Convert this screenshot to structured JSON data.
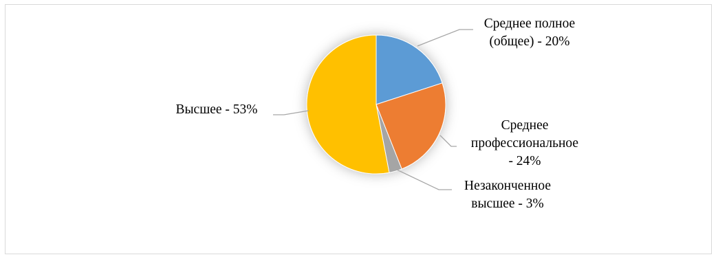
{
  "chart_data": {
    "type": "pie",
    "slices": [
      {
        "label_lines": [
          "Среднее полное",
          "(общее) - 20%"
        ],
        "value": 20,
        "color": "#5b9bd5",
        "key": "general-secondary"
      },
      {
        "label_lines": [
          "Среднее",
          "профессиональное",
          "- 24%"
        ],
        "value": 24,
        "color": "#ed7d31",
        "key": "vocational-secondary"
      },
      {
        "label_lines": [
          "Незаконченное",
          "высшее - 3%"
        ],
        "value": 3,
        "color": "#a5a5a5",
        "key": "incomplete-higher"
      },
      {
        "label_lines": [
          "Высшее - 53%"
        ],
        "value": 53,
        "color": "#ffc000",
        "key": "higher"
      }
    ],
    "start_angle_deg": 0,
    "direction": "clockwise",
    "legend": "none",
    "data_labels": "outside with leader lines"
  }
}
